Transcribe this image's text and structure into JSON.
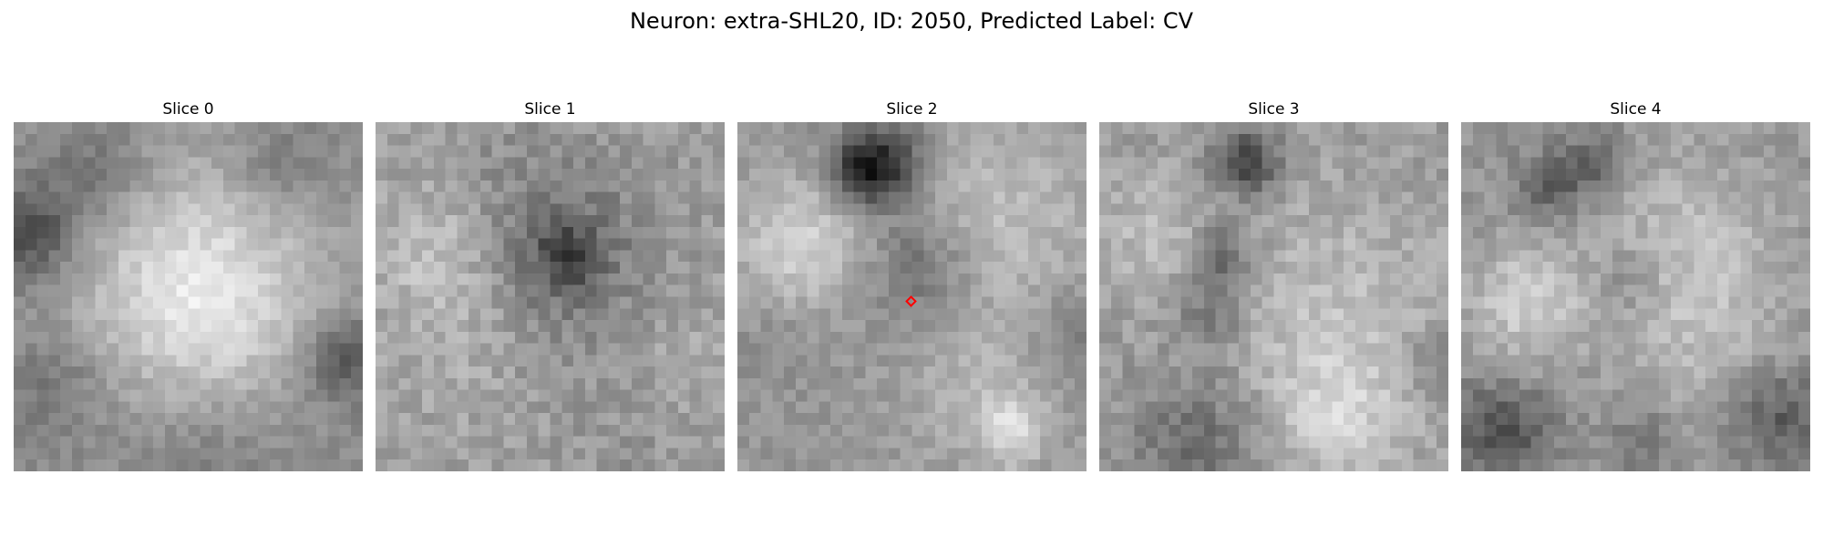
{
  "figure": {
    "title": "Neuron: extra-SHL20, ID: 2050, Predicted Label: CV"
  },
  "slices": [
    {
      "title": "Slice 0",
      "marker": false
    },
    {
      "title": "Slice 1",
      "marker": false
    },
    {
      "title": "Slice 2",
      "marker": true
    },
    {
      "title": "Slice 3",
      "marker": false
    },
    {
      "title": "Slice 4",
      "marker": false
    }
  ],
  "colors": {
    "marker": "#ff0000",
    "colormap": "gray"
  }
}
